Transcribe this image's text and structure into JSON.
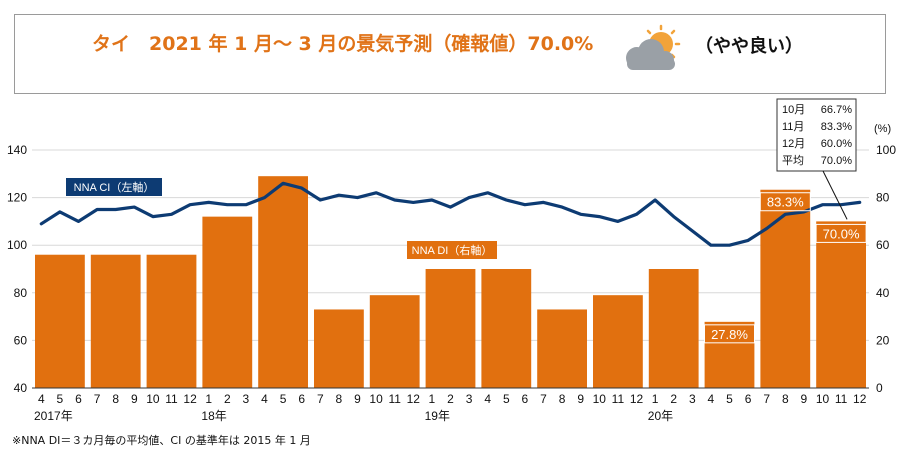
{
  "title": {
    "main": "タイ　2021 年 1 月～ 3 月の景気予測（確報値）70.0%",
    "verdict": "（やや良い）",
    "weather_icon": "partly-cloudy-icon"
  },
  "footnote": "※NNA DI＝３カ月毎の平均値、CI の基準年は 2015 年 1 月",
  "colors": {
    "bar": "#e1700f",
    "line": "#0d3b73",
    "title": "#e07318"
  },
  "chart_data": {
    "type": "bar+line",
    "x_tick_labels": [
      "4",
      "5",
      "6",
      "7",
      "8",
      "9",
      "10",
      "11",
      "12",
      "1",
      "2",
      "3",
      "4",
      "5",
      "6",
      "7",
      "8",
      "9",
      "10",
      "11",
      "12",
      "1",
      "2",
      "3",
      "4",
      "5",
      "6",
      "7",
      "8",
      "9",
      "10",
      "11",
      "12",
      "1",
      "2",
      "3",
      "4",
      "5",
      "6",
      "7",
      "8",
      "9",
      "10",
      "11",
      "12"
    ],
    "year_labels": [
      {
        "label": "2017年",
        "at_index": 0
      },
      {
        "label": "18年",
        "at_index": 9
      },
      {
        "label": "19年",
        "at_index": 21
      },
      {
        "label": "20年",
        "at_index": 33
      }
    ],
    "left_axis": {
      "label": "",
      "ylim": [
        40,
        140
      ],
      "ticks": [
        40,
        60,
        80,
        100,
        120,
        140
      ]
    },
    "right_axis": {
      "unit": "(%)",
      "ylim": [
        0,
        100
      ],
      "ticks": [
        0,
        20,
        40,
        60,
        80,
        100
      ]
    },
    "bars": {
      "name": "NNA DI（右軸）",
      "axis": "right",
      "groups": [
        {
          "start": 0,
          "end": 2,
          "value": 56
        },
        {
          "start": 3,
          "end": 5,
          "value": 56
        },
        {
          "start": 6,
          "end": 8,
          "value": 56
        },
        {
          "start": 9,
          "end": 11,
          "value": 72
        },
        {
          "start": 12,
          "end": 14,
          "value": 89
        },
        {
          "start": 15,
          "end": 17,
          "value": 33
        },
        {
          "start": 18,
          "end": 20,
          "value": 39
        },
        {
          "start": 21,
          "end": 23,
          "value": 50
        },
        {
          "start": 24,
          "end": 26,
          "value": 50
        },
        {
          "start": 27,
          "end": 29,
          "value": 33
        },
        {
          "start": 30,
          "end": 32,
          "value": 39
        },
        {
          "start": 33,
          "end": 35,
          "value": 50
        },
        {
          "start": 36,
          "end": 38,
          "value": 27.8,
          "label": "27.8%"
        },
        {
          "start": 39,
          "end": 41,
          "value": 83.3,
          "label": "83.3%"
        },
        {
          "start": 42,
          "end": 44,
          "value": 70.0,
          "label": "70.0%"
        }
      ]
    },
    "line": {
      "name": "NNA CI（左軸）",
      "axis": "left",
      "values": [
        109,
        114,
        110,
        115,
        115,
        116,
        112,
        113,
        117,
        118,
        117,
        117,
        120,
        126,
        124,
        119,
        121,
        120,
        122,
        119,
        118,
        119,
        116,
        120,
        122,
        119,
        117,
        118,
        116,
        113,
        112,
        110,
        113,
        119,
        112,
        106,
        100,
        100,
        102,
        107,
        113,
        114,
        117,
        117,
        118
      ]
    },
    "annotation": {
      "rows": [
        {
          "label": "10月",
          "value": "66.7%"
        },
        {
          "label": "11月",
          "value": "83.3%"
        },
        {
          "label": "12月",
          "value": "60.0%"
        },
        {
          "label": "平均",
          "value": "70.0%"
        }
      ]
    }
  }
}
